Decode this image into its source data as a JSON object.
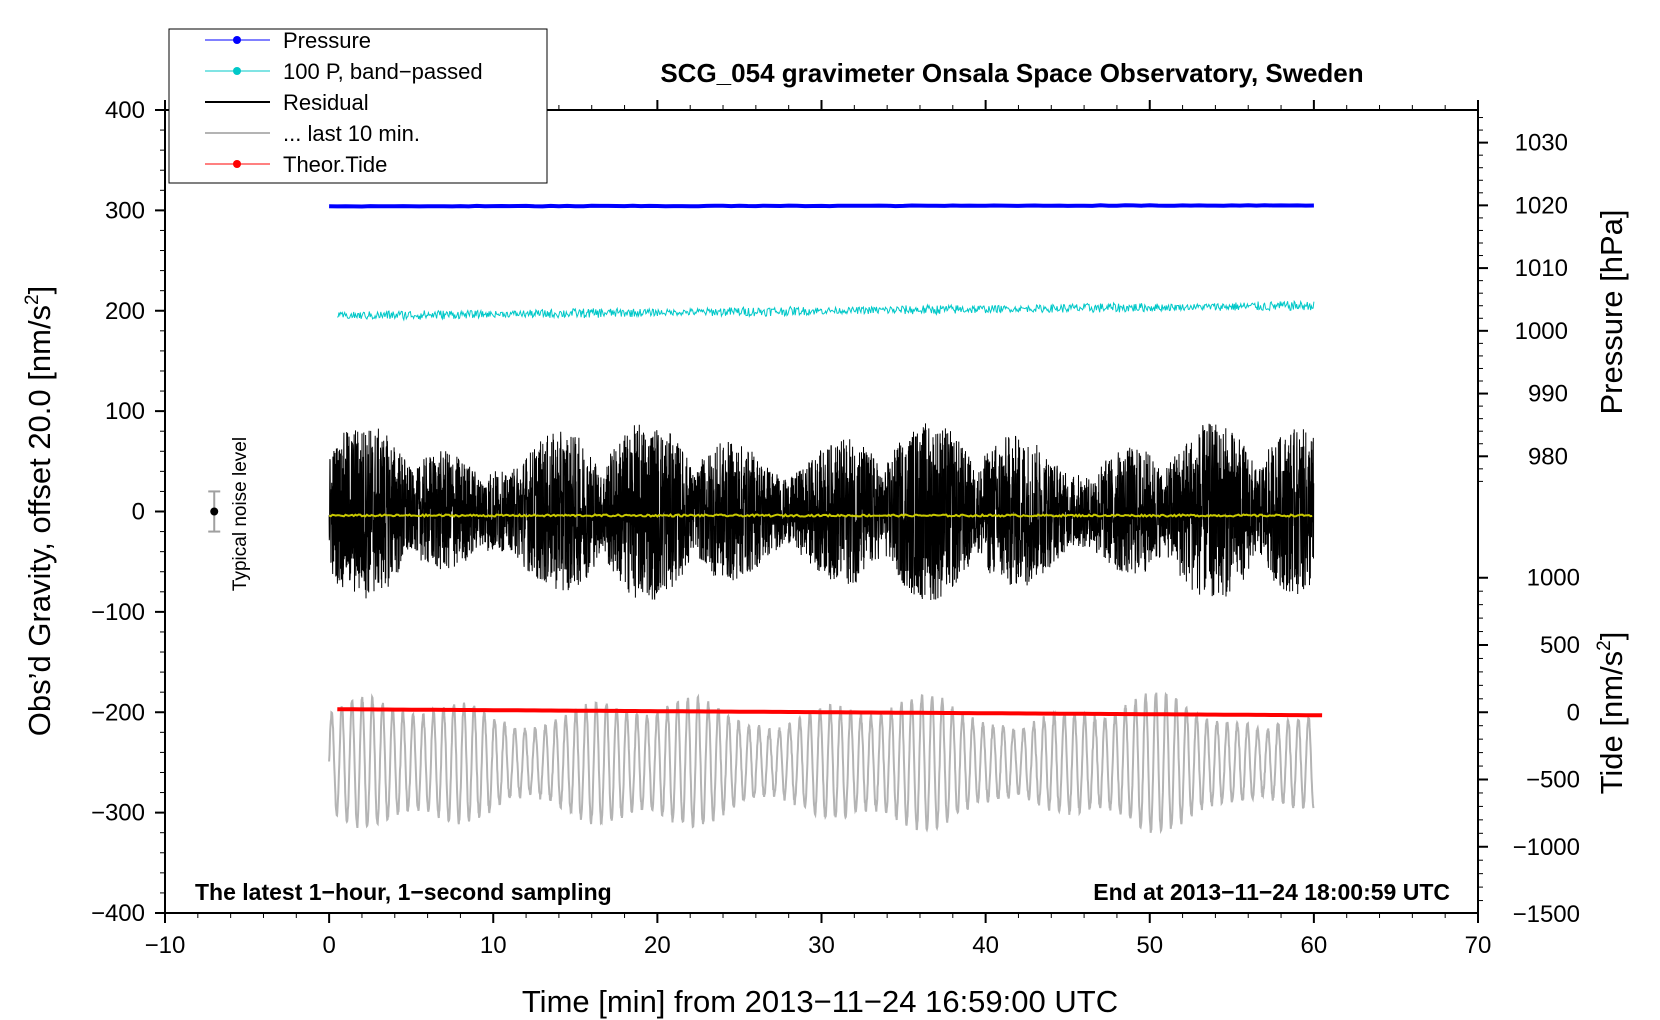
{
  "chart_data": {
    "type": "line",
    "title": "SCG_054 gravimeter Onsala Space Observatory, Sweden",
    "xlabel": "Time [min] from 2013−11−24 16:59:00 UTC",
    "ylabel_left": "Obs’d Gravity, offset 20.0 [nm/s",
    "ylabel_left_sup": "2",
    "ylabel_left_end": "]",
    "ylabel_right_pressure": "Pressure [hPa]",
    "ylabel_right_tide": "Tide [nm/s",
    "ylabel_right_tide_sup": "2",
    "ylabel_right_tide_end": "]",
    "xlim": [
      -10,
      70
    ],
    "ylim_left": [
      -400,
      400
    ],
    "x_ticks": [
      "−10",
      "0",
      "10",
      "20",
      "30",
      "40",
      "50",
      "60",
      "70"
    ],
    "y_ticks_left": [
      "400",
      "300",
      "200",
      "100",
      "0",
      "−100",
      "−200",
      "−300",
      "−400"
    ],
    "pressure_axis": {
      "ticks": [
        "1030",
        "1020",
        "1010",
        "1000",
        "990",
        "980"
      ],
      "values": [
        1030,
        1020,
        1010,
        1000,
        990,
        980
      ],
      "gravity_equiv_of_1020": 305,
      "gravity_per_hPa": 6.25
    },
    "tide_axis": {
      "ticks": [
        "1000",
        "500",
        "0",
        "−500",
        "−1000",
        "−1500"
      ],
      "values": [
        1000,
        500,
        0,
        -500,
        -1000,
        -1500
      ],
      "gravity_equiv_of_0": -200,
      "gravity_per_unit": 0.134
    },
    "legend": [
      {
        "label": "Pressure",
        "color": "#0000ff",
        "marker": true
      },
      {
        "label": "100 P, band−passed",
        "color": "#00c8c8",
        "marker": true
      },
      {
        "label": "Residual",
        "color": "#000000",
        "marker": false
      },
      {
        "label": "... last 10 min.",
        "color": "#b4b4b4",
        "marker": false
      },
      {
        "label": "Theor.Tide",
        "color": "#ff0000",
        "marker": true
      }
    ],
    "annotations": {
      "bottom_left": "The latest 1−hour, 1−second sampling",
      "bottom_right": "End at 2013−11−24 18:00:59 UTC",
      "noise_label": "Typical noise level"
    },
    "series": [
      {
        "name": "Pressure",
        "color": "#0000ff",
        "x_range": [
          0,
          60
        ],
        "start": 304,
        "end": 305,
        "noise": 0.3
      },
      {
        "name": "100 P, band−passed",
        "color": "#00c8c8",
        "x_range": [
          0.5,
          60
        ],
        "start": 195,
        "end": 205,
        "noise": 3
      },
      {
        "name": "Residual",
        "color": "#000000",
        "x_range": [
          0,
          60
        ],
        "start": 0,
        "end": 0,
        "amplitude": 90
      },
      {
        "name": "Residual (smoothed)",
        "color": "#c8c800",
        "x_range": [
          0,
          60
        ],
        "start": -4,
        "end": -4,
        "noise": 1
      },
      {
        "name": "... last 10 min.",
        "color": "#b4b4b4",
        "x_range": [
          0,
          60
        ],
        "center": -250,
        "amplitude": 70
      },
      {
        "name": "Theor.Tide",
        "color": "#ff0000",
        "x_range": [
          0.5,
          60.5
        ],
        "start": -197,
        "end": -203
      }
    ],
    "noise_level": {
      "x": -7,
      "center": 0,
      "half_range": 20
    }
  }
}
